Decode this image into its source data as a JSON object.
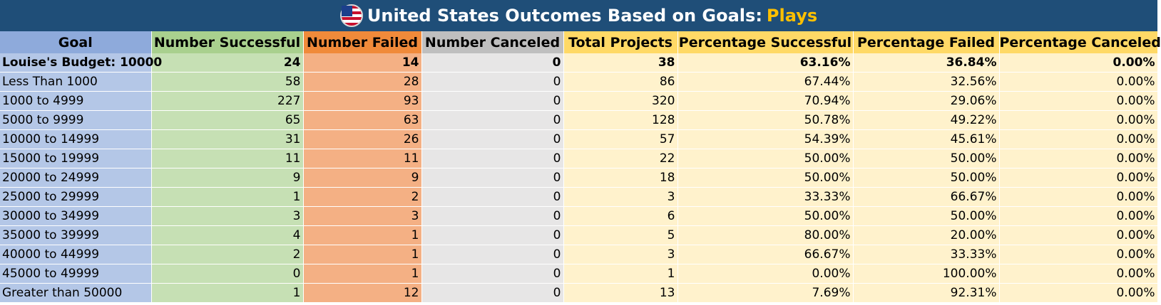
{
  "title": {
    "main": "United States Outcomes Based on Goals: ",
    "accent": "Plays"
  },
  "flag_icon": "us-flag-icon",
  "colors": {
    "title_bg": "#1f4e78",
    "accent": "#ffc000",
    "goal": "#b4c7e7",
    "successful": "#c6e0b4",
    "failed": "#f4b084",
    "canceled": "#e7e6e6",
    "totals": "#fff2cc"
  },
  "headers": [
    "Goal",
    "Number Successful",
    "Number Failed",
    "Number Canceled",
    "Total Projects",
    "Percentage Successful",
    "Percentage Failed",
    "Percentage Canceled"
  ],
  "rows": [
    [
      "Louise's Budget: 10000",
      "24",
      "14",
      "0",
      "38",
      "63.16%",
      "36.84%",
      "0.00%"
    ],
    [
      "Less Than 1000",
      "58",
      "28",
      "0",
      "86",
      "67.44%",
      "32.56%",
      "0.00%"
    ],
    [
      "1000 to 4999",
      "227",
      "93",
      "0",
      "320",
      "70.94%",
      "29.06%",
      "0.00%"
    ],
    [
      "5000 to 9999",
      "65",
      "63",
      "0",
      "128",
      "50.78%",
      "49.22%",
      "0.00%"
    ],
    [
      "10000 to 14999",
      "31",
      "26",
      "0",
      "57",
      "54.39%",
      "45.61%",
      "0.00%"
    ],
    [
      "15000 to 19999",
      "11",
      "11",
      "0",
      "22",
      "50.00%",
      "50.00%",
      "0.00%"
    ],
    [
      "20000 to 24999",
      "9",
      "9",
      "0",
      "18",
      "50.00%",
      "50.00%",
      "0.00%"
    ],
    [
      "25000 to 29999",
      "1",
      "2",
      "0",
      "3",
      "33.33%",
      "66.67%",
      "0.00%"
    ],
    [
      "30000 to 34999",
      "3",
      "3",
      "0",
      "6",
      "50.00%",
      "50.00%",
      "0.00%"
    ],
    [
      "35000 to 39999",
      "4",
      "1",
      "0",
      "5",
      "80.00%",
      "20.00%",
      "0.00%"
    ],
    [
      "40000 to 44999",
      "2",
      "1",
      "0",
      "3",
      "66.67%",
      "33.33%",
      "0.00%"
    ],
    [
      "45000 to 49999",
      "0",
      "1",
      "0",
      "1",
      "0.00%",
      "100.00%",
      "0.00%"
    ],
    [
      "Greater than 50000",
      "1",
      "12",
      "0",
      "13",
      "7.69%",
      "92.31%",
      "0.00%"
    ]
  ]
}
